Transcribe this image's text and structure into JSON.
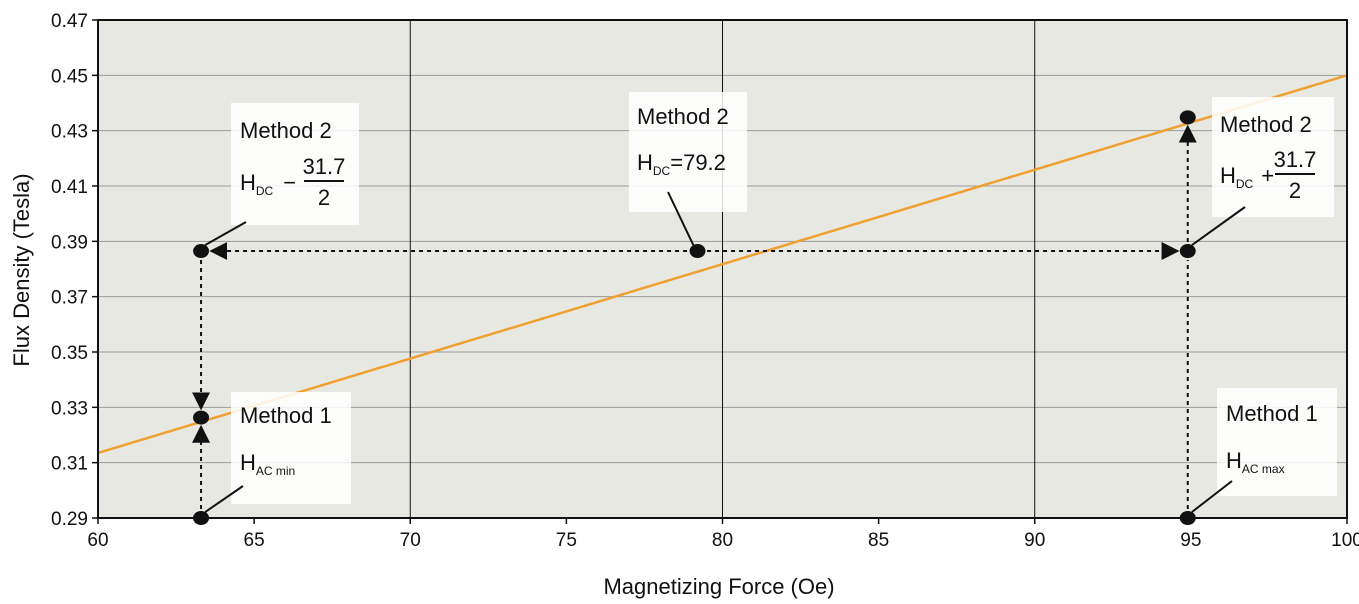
{
  "chart_data": {
    "type": "line",
    "xlabel": "Magnetizing Force (Oe)",
    "ylabel": "Flux Density (Tesla)",
    "xlim": [
      60,
      100
    ],
    "ylim": [
      0.29,
      0.47
    ],
    "x_ticks": [
      "60",
      "65",
      "70",
      "75",
      "80",
      "85",
      "90",
      "95",
      "100"
    ],
    "y_ticks": [
      "0.29",
      "0.31",
      "0.33",
      "0.35",
      "0.37",
      "0.39",
      "0.41",
      "0.43",
      "0.45",
      "0.47"
    ],
    "grid": {
      "vertical": [
        70,
        80,
        90
      ],
      "horizontal": true
    },
    "colors": {
      "plot_background": "#e8e8e3",
      "line": "#f0a030",
      "grid": "#9a9a9a"
    },
    "series": [
      {
        "x": [
          60,
          100
        ],
        "y": [
          0.3135,
          0.45
        ]
      }
    ],
    "points": [
      {
        "id": "hac-min-base",
        "x": 63.3,
        "y": 0.29
      },
      {
        "id": "hac-min-curve",
        "x": 63.3,
        "y": 0.3263
      },
      {
        "id": "hdc-minus",
        "x": 63.3,
        "y": 0.3865
      },
      {
        "id": "hdc",
        "x": 79.2,
        "y": 0.3865
      },
      {
        "id": "hdc-plus",
        "x": 94.9,
        "y": 0.3865
      },
      {
        "id": "hac-max-curve",
        "x": 94.9,
        "y": 0.4348
      },
      {
        "id": "hac-max-base",
        "x": 94.9,
        "y": 0.29
      }
    ],
    "annotations": {
      "left_method2": {
        "title": "Method 2",
        "h": "H",
        "sub": "DC",
        "op": "−",
        "num": "31.7",
        "den": "2"
      },
      "center_method2": {
        "title": "Method 2",
        "h": "H",
        "sub": "DC",
        "rest": "=79.2"
      },
      "right_method2": {
        "title": "Method 2",
        "h": "H",
        "sub": "DC",
        "op": "+",
        "num": "31.7",
        "den": "2"
      },
      "left_method1": {
        "title": "Method 1",
        "h": "H",
        "sub": "AC min"
      },
      "right_method1": {
        "title": "Method 1",
        "h": "H",
        "sub": "AC max"
      }
    }
  }
}
